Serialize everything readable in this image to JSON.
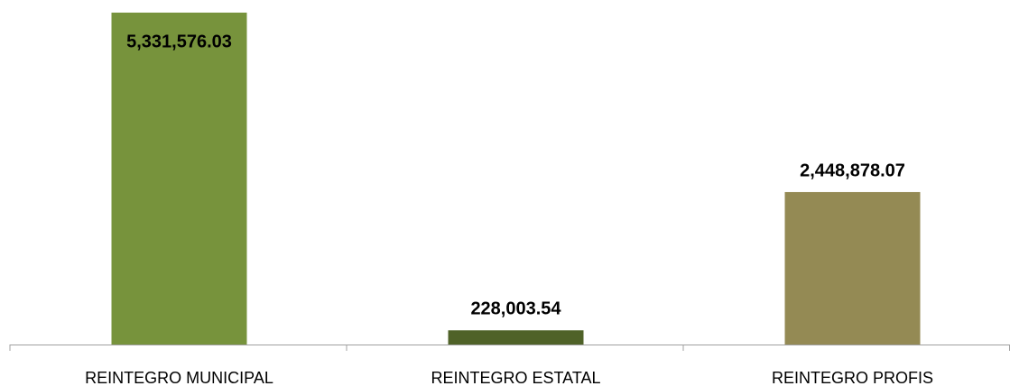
{
  "chart_data": {
    "type": "bar",
    "categories": [
      "REINTEGRO MUNICIPAL",
      "REINTEGRO ESTATAL",
      "REINTEGRO PROFIS"
    ],
    "values": [
      5331576.03,
      228003.54,
      2448878.07
    ],
    "value_labels": [
      "5,331,576.03",
      "228,003.54",
      "2,448,878.07"
    ],
    "colors": [
      "#77933c",
      "#4f6228",
      "#948a54"
    ]
  }
}
